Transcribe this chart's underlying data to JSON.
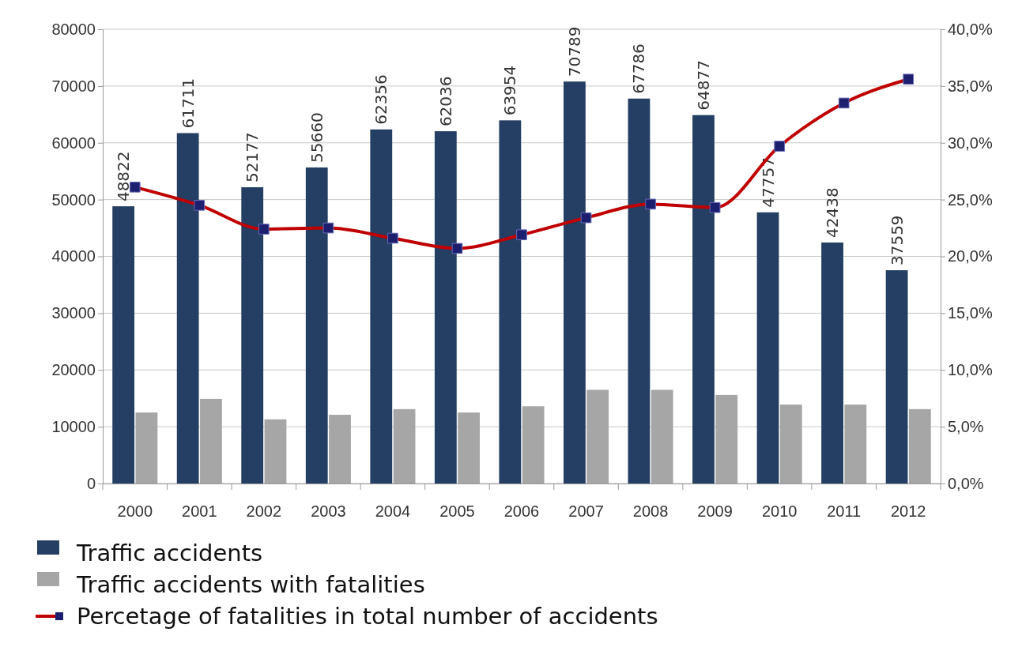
{
  "chart_data": {
    "type": "bar",
    "categories": [
      "2000",
      "2001",
      "2002",
      "2003",
      "2004",
      "2005",
      "2006",
      "2007",
      "2008",
      "2009",
      "2010",
      "2011",
      "2012"
    ],
    "series": [
      {
        "name": "Traffic accidents",
        "color": "#243f63",
        "values": [
          48822,
          61711,
          52177,
          55660,
          62356,
          62036,
          63954,
          70789,
          67786,
          64877,
          47757,
          42438,
          37559
        ],
        "data_labels": true
      },
      {
        "name": "Traffic accidents with fatalities",
        "color": "#a6a6a6",
        "values": [
          12500,
          14900,
          11300,
          12100,
          13100,
          12500,
          13600,
          16500,
          16500,
          15600,
          13900,
          13900,
          13100
        ]
      },
      {
        "name": "Percetage of fatalities in total number of accidents",
        "type": "line",
        "axis": "y2",
        "color": "#c00000",
        "marker": "square",
        "values": [
          26.1,
          24.5,
          22.4,
          22.5,
          21.6,
          20.7,
          21.9,
          23.4,
          24.6,
          24.3,
          29.7,
          33.5,
          35.6
        ]
      }
    ],
    "ylim": [
      0,
      80000
    ],
    "yticks": [
      0,
      10000,
      20000,
      30000,
      40000,
      50000,
      60000,
      70000,
      80000
    ],
    "y2lim": [
      0,
      40
    ],
    "y2ticks": [
      {
        "value": 0,
        "label": "0,0%"
      },
      {
        "value": 5,
        "label": "5,0%"
      },
      {
        "value": 10,
        "label": "10,0%"
      },
      {
        "value": 15,
        "label": "15,0%"
      },
      {
        "value": 20,
        "label": "20,0%"
      },
      {
        "value": 25,
        "label": "25,0%"
      },
      {
        "value": 30,
        "label": "30,0%"
      },
      {
        "value": 35,
        "label": "35,0%"
      },
      {
        "value": 40,
        "label": "40,0%"
      }
    ],
    "grid": "y",
    "legend": "bottom"
  }
}
